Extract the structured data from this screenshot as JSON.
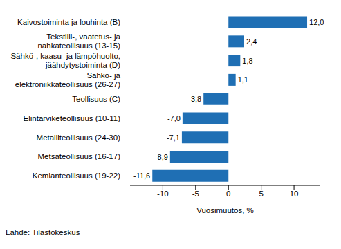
{
  "chart_data": {
    "type": "bar",
    "orientation": "horizontal",
    "categories": [
      "Kaivostoiminta ja louhinta (B)",
      "Tekstiili-, vaatetus- ja\nnahkateollisuus (13-15)",
      "Sähkö-, kaasu- ja lämpöhuolto,\njäähdytystoiminta (D)",
      "Sähkö- ja\nelektroniikkateollisuus (26-27)",
      "Teollisuus (C)",
      "Elintarviketeollisuus (10-11)",
      "Metalliteollisuus (24-30)",
      "Metsäteollisuus (16-17)",
      "Kemianteollisuus (19-22)"
    ],
    "values": [
      12.0,
      2.4,
      1.8,
      1.1,
      -3.8,
      -7.0,
      -7.1,
      -8.9,
      -11.6
    ],
    "value_labels": [
      "12,0",
      "2,4",
      "1,8",
      "1,1",
      "-3,8",
      "-7,0",
      "-7,1",
      "-8,9",
      "-11,6"
    ],
    "data_labels": true,
    "color": "#1f6fb4",
    "xlim": [
      -15,
      14
    ],
    "xticks": [
      -10,
      -5,
      0,
      5,
      10
    ],
    "x_label": "Vuosimuutos, %",
    "grid": false,
    "source": "Lähde: Tilastokeskus"
  }
}
